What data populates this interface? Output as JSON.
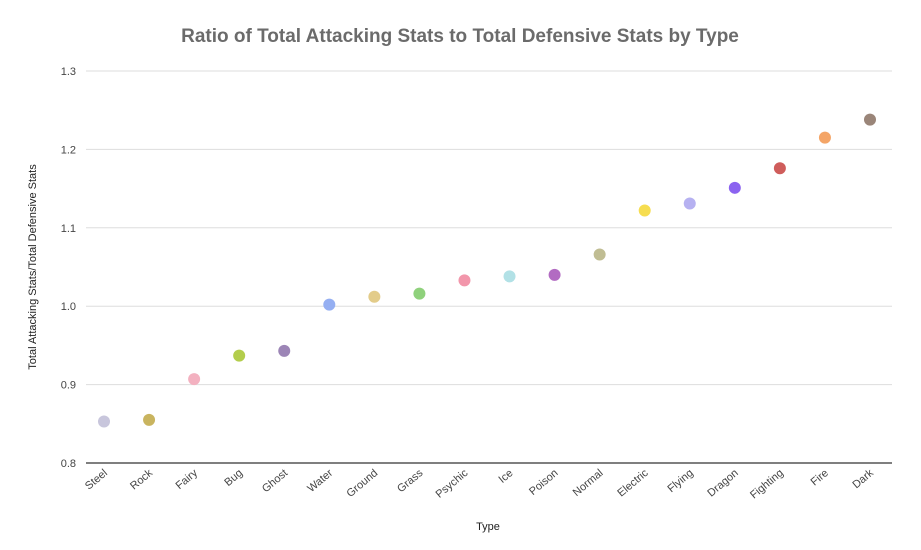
{
  "chart_data": {
    "type": "scatter",
    "title": "Ratio of Total Attacking Stats to Total Defensive Stats by Type",
    "xlabel": "Type",
    "ylabel": "Total Attacking Stats/Total Defensive Stats",
    "ylim": [
      0.8,
      1.3
    ],
    "yticks": [
      "0.8",
      "0.9",
      "1.0",
      "1.1",
      "1.2",
      "1.3"
    ],
    "grid": true,
    "legend": "none",
    "categories": [
      "Steel",
      "Rock",
      "Fairy",
      "Bug",
      "Ghost",
      "Water",
      "Ground",
      "Grass",
      "Psychic",
      "Ice",
      "Poison",
      "Normal",
      "Electric",
      "Flying",
      "Dragon",
      "Fighting",
      "Fire",
      "Dark"
    ],
    "values": [
      0.853,
      0.855,
      0.907,
      0.937,
      0.943,
      1.002,
      1.012,
      1.016,
      1.033,
      1.038,
      1.04,
      1.066,
      1.122,
      1.131,
      1.151,
      1.176,
      1.215,
      1.238
    ],
    "colors": [
      "#c8c6dc",
      "#c9b45f",
      "#f3b1c0",
      "#b3cd4c",
      "#9c85b6",
      "#95aff2",
      "#e3cc8a",
      "#8fd17c",
      "#f296ab",
      "#b2e1e6",
      "#b26bc2",
      "#c0bd93",
      "#f6dd50",
      "#b6b1f1",
      "#8b63f0",
      "#cf5d5b",
      "#f4a567",
      "#9a8579"
    ]
  }
}
